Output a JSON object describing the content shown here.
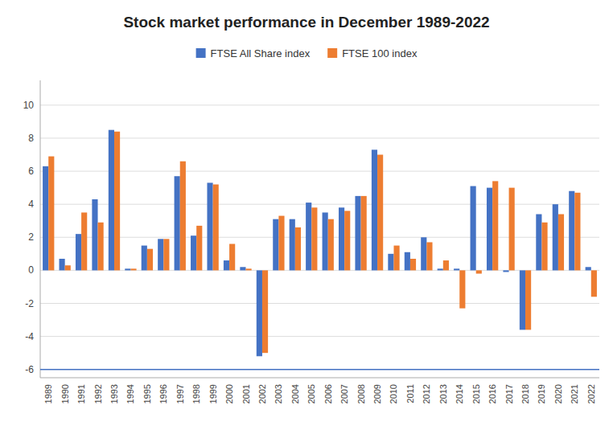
{
  "chart_data": {
    "type": "bar",
    "title": "Stock market performance in December 1989-2022",
    "categories": [
      "1989",
      "1990",
      "1991",
      "1992",
      "1993",
      "1994",
      "1995",
      "1996",
      "1997",
      "1998",
      "1999",
      "2000",
      "2001",
      "2002",
      "2003",
      "2004",
      "2005",
      "2006",
      "2007",
      "2008",
      "2009",
      "2010",
      "2011",
      "2012",
      "2013",
      "2014",
      "2015",
      "2016",
      "2017",
      "2018",
      "2019",
      "2020",
      "2021",
      "2022"
    ],
    "series": [
      {
        "name": "FTSE All Share index",
        "color": "#4472C4",
        "values": [
          6.3,
          0.7,
          2.2,
          4.3,
          8.5,
          0.1,
          1.5,
          1.9,
          5.7,
          2.1,
          5.3,
          0.6,
          0.2,
          -5.2,
          3.1,
          3.1,
          4.1,
          3.5,
          3.8,
          4.5,
          7.3,
          1.0,
          1.1,
          2.0,
          0.1,
          0.1,
          5.1,
          5.0,
          -0.1,
          -3.6,
          3.4,
          4.0,
          4.8,
          0.2
        ]
      },
      {
        "name": "FTSE 100 index",
        "color": "#ED7D31",
        "values": [
          6.9,
          0.3,
          3.5,
          2.9,
          8.4,
          0.1,
          1.3,
          1.9,
          6.6,
          2.7,
          5.2,
          1.6,
          0.1,
          -5.0,
          3.3,
          2.6,
          3.8,
          3.1,
          3.6,
          4.5,
          7.0,
          1.5,
          0.7,
          1.7,
          0.6,
          -2.3,
          -0.2,
          5.4,
          5.0,
          -3.6,
          2.9,
          3.4,
          4.7,
          -1.6
        ]
      }
    ],
    "ylim": [
      -6.5,
      11.5
    ],
    "yticks": [
      -6,
      -4,
      -2,
      0,
      2,
      4,
      6,
      8,
      10
    ],
    "reference_line": {
      "value": -6.0,
      "color": "#4472C4"
    },
    "grid": true,
    "legend": "top"
  }
}
